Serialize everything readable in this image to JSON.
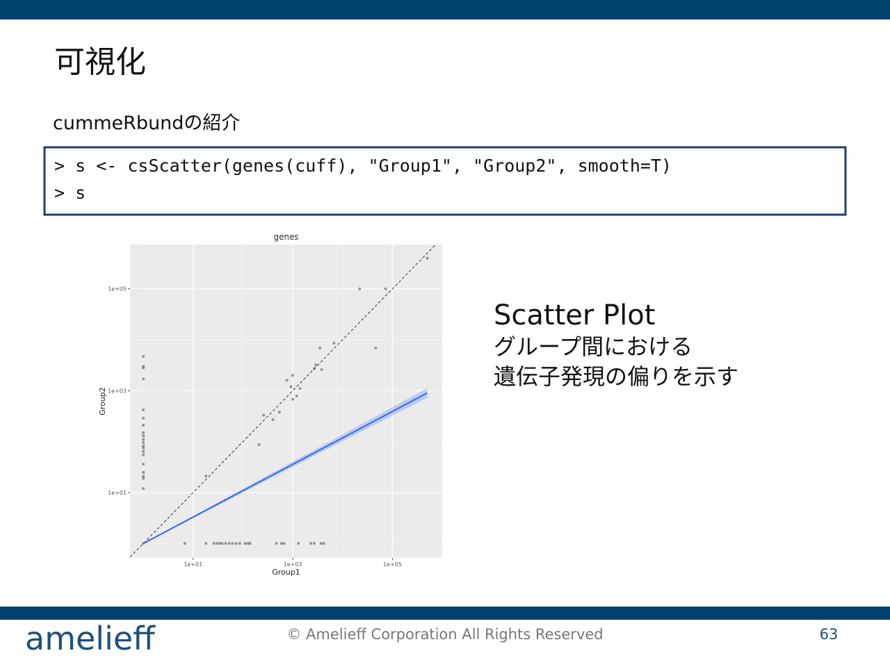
{
  "slide": {
    "title": "可視化",
    "subtitle": "cummeRbundの紹介",
    "code": [
      "> s <- csScatter(genes(cuff), \"Group1\", \"Group2\", smooth=T)",
      "> s"
    ],
    "heading": "Scatter Plot",
    "description": [
      "グループ間における",
      "遺伝子発現の偏りを示す"
    ],
    "footer": "© Amelieff Corporation All Rights Reserved",
    "page": "63",
    "logo": "amelieff"
  },
  "chart_data": {
    "type": "scatter",
    "title": "genes",
    "x_label": "Group1",
    "y_label": "Group2",
    "xscale": "log",
    "yscale": "log",
    "grid": true,
    "xlim": [
      0.54,
      1000000
    ],
    "ylim": [
      0.52,
      740000
    ],
    "xticks": [
      {
        "value": 10,
        "label": "1e+01"
      },
      {
        "value": 1000,
        "label": "1e+03"
      },
      {
        "value": 100000,
        "label": "1e+05"
      }
    ],
    "yticks": [
      {
        "value": 10,
        "label": "1e+01"
      },
      {
        "value": 1000,
        "label": "1e+03"
      },
      {
        "value": 100000,
        "label": "1e+05"
      }
    ],
    "series": [
      {
        "color": "#555555",
        "x": [
          1,
          1,
          1,
          1,
          1,
          1,
          1,
          1,
          1,
          1,
          1,
          1,
          1,
          1,
          1,
          1,
          1,
          1,
          1,
          1,
          1,
          6.8,
          18,
          26,
          30,
          34,
          38,
          45,
          53,
          62,
          73,
          86,
          110,
          126,
          139,
          470,
          590,
          670,
          1300,
          2300,
          2700,
          3700,
          4200,
          18,
          210,
          260,
          400,
          540,
          760,
          990,
          1000,
          1200,
          1400,
          920,
          2700,
          2900,
          3800,
          3500,
          6700,
          46000,
          22000,
          73000,
          500000
        ],
        "y": [
          4700,
          3000,
          2800,
          1700,
          420,
          290,
          210,
          150,
          130,
          110,
          96,
          82,
          75,
          64,
          55,
          36,
          25,
          21,
          19,
          12,
          1,
          1,
          1,
          1,
          1,
          1,
          1,
          1,
          1,
          1,
          1,
          1,
          1,
          1,
          1,
          1,
          1,
          1,
          1,
          1,
          1,
          1,
          1,
          21,
          87,
          330,
          270,
          380,
          1600,
          2000,
          680,
          790,
          1100,
          1200,
          2700,
          3200,
          2600,
          6900,
          8600,
          6900,
          100000,
          100000,
          400000
        ]
      }
    ],
    "smooth": {
      "color": "#3366ff",
      "x": [
        1,
        500000
      ],
      "y": [
        1,
        900
      ]
    }
  }
}
